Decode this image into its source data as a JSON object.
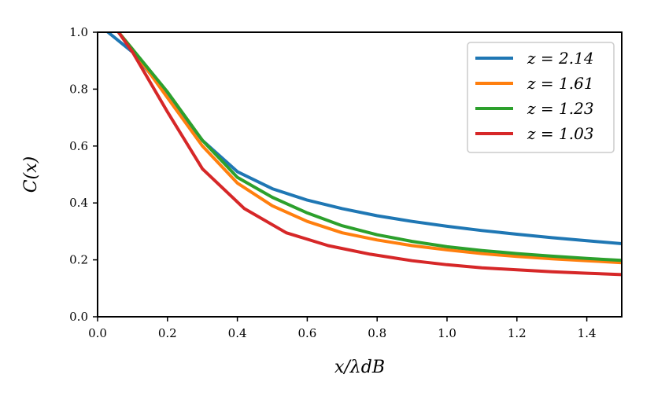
{
  "chart_data": {
    "type": "line",
    "xlabel": "x/λdB",
    "ylabel": "C(x)",
    "xlim": [
      0.0,
      1.5
    ],
    "ylim": [
      0.0,
      1.0
    ],
    "x_ticks": [
      "0.0",
      "0.2",
      "0.4",
      "0.6",
      "0.8",
      "1.0",
      "1.2",
      "1.4"
    ],
    "y_ticks": [
      "0.0",
      "0.2",
      "0.4",
      "0.6",
      "0.8",
      "1.0"
    ],
    "grid": false,
    "legend_position": "top-right",
    "series": [
      {
        "name": "z = 2.14",
        "color": "#1f77b4",
        "x": [
          0.03,
          0.1,
          0.2,
          0.3,
          0.4,
          0.5,
          0.6,
          0.7,
          0.8,
          0.9,
          1.0,
          1.1,
          1.2,
          1.3,
          1.4,
          1.5
        ],
        "y": [
          1.0,
          0.93,
          0.78,
          0.62,
          0.51,
          0.45,
          0.41,
          0.38,
          0.355,
          0.335,
          0.318,
          0.303,
          0.29,
          0.278,
          0.267,
          0.257
        ]
      },
      {
        "name": "z = 1.61",
        "color": "#ff7f0e",
        "x": [
          0.06,
          0.1,
          0.2,
          0.3,
          0.4,
          0.5,
          0.6,
          0.7,
          0.8,
          0.9,
          1.0,
          1.1,
          1.2,
          1.3,
          1.4,
          1.5
        ],
        "y": [
          1.0,
          0.94,
          0.77,
          0.6,
          0.47,
          0.39,
          0.335,
          0.295,
          0.27,
          0.25,
          0.235,
          0.222,
          0.212,
          0.204,
          0.197,
          0.19
        ]
      },
      {
        "name": "z = 1.23",
        "color": "#2ca02c",
        "x": [
          0.06,
          0.1,
          0.2,
          0.3,
          0.4,
          0.5,
          0.6,
          0.7,
          0.8,
          0.9,
          1.0,
          1.1,
          1.2,
          1.3,
          1.4,
          1.5
        ],
        "y": [
          1.0,
          0.94,
          0.79,
          0.62,
          0.49,
          0.42,
          0.365,
          0.32,
          0.288,
          0.265,
          0.246,
          0.233,
          0.222,
          0.213,
          0.205,
          0.198
        ]
      },
      {
        "name": "z = 1.03",
        "color": "#d62728",
        "x": [
          0.06,
          0.1,
          0.2,
          0.3,
          0.42,
          0.54,
          0.66,
          0.78,
          0.9,
          1.0,
          1.1,
          1.2,
          1.3,
          1.4,
          1.5
        ],
        "y": [
          1.0,
          0.93,
          0.72,
          0.52,
          0.38,
          0.295,
          0.25,
          0.22,
          0.197,
          0.183,
          0.172,
          0.165,
          0.158,
          0.153,
          0.148
        ]
      }
    ]
  }
}
